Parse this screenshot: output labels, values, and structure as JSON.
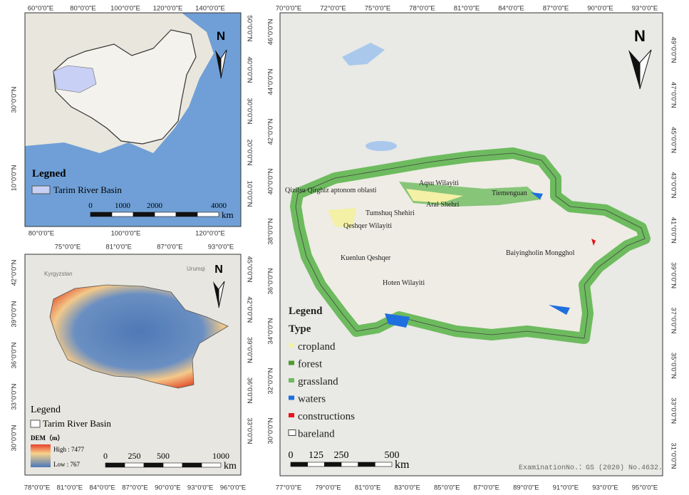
{
  "overview_map": {
    "top_labels": [
      "60°0'0\"E",
      "80°0'0\"E",
      "100°0'0\"E",
      "120°0'0\"E",
      "140°0'0\"E"
    ],
    "bottom_labels": [
      "80°0'0\"E",
      "100°0'0\"E",
      "120°0'0\"E"
    ],
    "left_labels": [
      "30°0'0\"N",
      "10°0'0\"N"
    ],
    "right_labels": [
      "50°0'0\"N",
      "40°0'0\"N",
      "30°0'0\"N",
      "20°0'0\"N",
      "10°0'0\"N"
    ],
    "north": "N",
    "legend_title": "Legned",
    "legend_item": "Tarim River Basin",
    "scale": {
      "labels": [
        "0",
        "1000",
        "2000",
        "4000"
      ],
      "unit": "km"
    }
  },
  "dem_map": {
    "top_labels": [
      "75°0'0\"E",
      "81°0'0\"E",
      "87°0'0\"E",
      "93°0'0\"E"
    ],
    "bottom_labels": [
      "78°0'0\"E",
      "81°0'0\"E",
      "84°0'0\"E",
      "87°0'0\"E",
      "90°0'0\"E",
      "93°0'0\"E",
      "96°0'0\"E"
    ],
    "left_labels": [
      "42°0'0\"N",
      "39°0'0\"N",
      "36°0'0\"N",
      "33°0'0\"N",
      "30°0'0\"N"
    ],
    "right_labels": [
      "45°0'0\"N",
      "42°0'0\"N",
      "39°0'0\"N",
      "36°0'0\"N",
      "33°0'0\"N"
    ],
    "north": "N",
    "place_labels": [
      "Kyrgyzstan",
      "Urumqi"
    ],
    "legend_title": "Legend",
    "legend_item": "Tarim River Basin",
    "dem_title": "DEM（m）",
    "high": "High : 7477",
    "low": "Low : 767",
    "scale": {
      "labels": [
        "0",
        "250",
        "500",
        "1000"
      ],
      "unit": "km"
    }
  },
  "landuse_map": {
    "top_labels": [
      "70°0'0\"E",
      "72°0'0\"E",
      "75°0'0\"E",
      "78°0'0\"E",
      "81°0'0\"E",
      "84°0'0\"E",
      "87°0'0\"E",
      "90°0'0\"E",
      "93°0'0\"E"
    ],
    "bottom_labels": [
      "77°0'0\"E",
      "79°0'0\"E",
      "81°0'0\"E",
      "83°0'0\"E",
      "85°0'0\"E",
      "87°0'0\"E",
      "89°0'0\"E",
      "91°0'0\"E",
      "93°0'0\"E",
      "95°0'0\"E"
    ],
    "left_labels": [
      "46°0'0\"N",
      "44°0'0\"N",
      "42°0'0\"N",
      "40°0'0\"N",
      "38°0'0\"N",
      "36°0'0\"N",
      "34°0'0\"N",
      "32°0'0\"N",
      "30°0'0\"N"
    ],
    "right_labels": [
      "49°0'0\"N",
      "47°0'0\"N",
      "45°0'0\"N",
      "43°0'0\"N",
      "41°0'0\"N",
      "39°0'0\"N",
      "37°0'0\"N",
      "35°0'0\"N",
      "33°0'0\"N",
      "31°0'0\"N"
    ],
    "north": "N",
    "regions": [
      "Qizilsu Qirghiz aptonom oblasti",
      "Aqsu Wilayiti",
      "Tiemenguan",
      "Aral Shehri",
      "Tumshuq Shehiri",
      "Qeshqer Wilayiti",
      "Baiyingholin Mongghol",
      "Kuenlun Qeshqer",
      "Hoten Wilayiti"
    ],
    "legend_title": "Legend",
    "type_title": "Type",
    "types": [
      {
        "name": "cropland",
        "color": "#f4f0a6"
      },
      {
        "name": "forest",
        "color": "#4f9a2e"
      },
      {
        "name": "grassland",
        "color": "#6dbb5e"
      },
      {
        "name": "waters",
        "color": "#1f6fe0"
      },
      {
        "name": "constructions",
        "color": "#e8141c"
      },
      {
        "name": "bareland",
        "color": "#ffffff"
      }
    ],
    "scale": {
      "labels": [
        "0",
        "125",
        "250",
        "500"
      ],
      "unit": "km"
    },
    "examination": "ExaminationNo.：GS (2020) No.4632."
  }
}
